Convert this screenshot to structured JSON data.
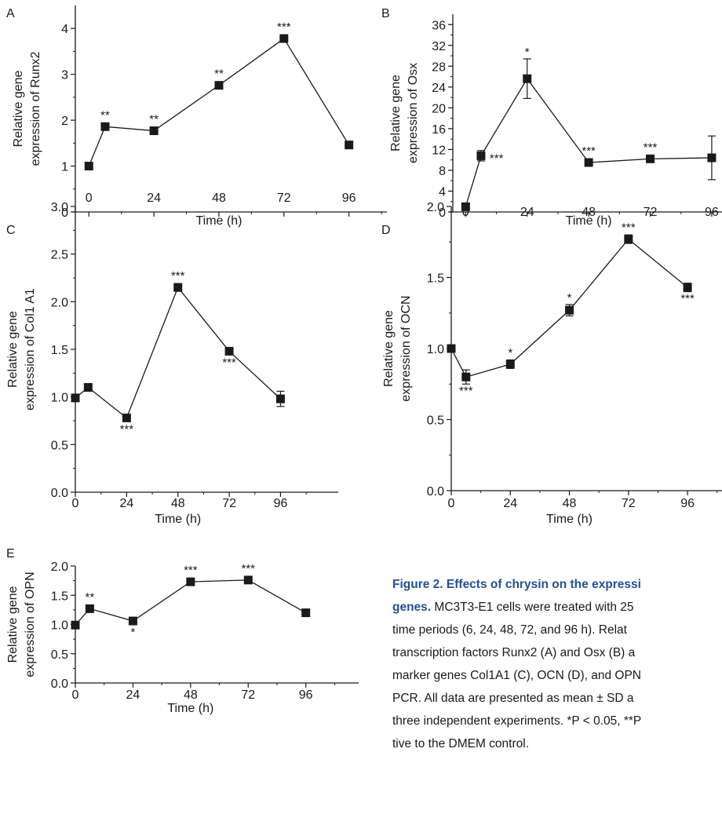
{
  "chart_data": [
    {
      "panel": "A",
      "type": "line",
      "xlabel": "Time (h)",
      "ylabel_lines": [
        "Relative gene",
        "expression of Runx2"
      ],
      "xlim": [
        -5,
        110
      ],
      "ylim": [
        0,
        4.5
      ],
      "xticks": [
        0,
        24,
        48,
        72,
        96
      ],
      "yticks": [
        0,
        1,
        2,
        3,
        4
      ],
      "ytick_labels": [
        "0",
        "1",
        "2",
        "3",
        "4"
      ],
      "points": [
        {
          "x": 0,
          "y": 1.0,
          "err": 0.04,
          "sig": "",
          "sig_pos": "above"
        },
        {
          "x": 6,
          "y": 1.86,
          "err": 0.04,
          "sig": "**",
          "sig_pos": "above"
        },
        {
          "x": 24,
          "y": 1.77,
          "err": 0.04,
          "sig": "**",
          "sig_pos": "above"
        },
        {
          "x": 48,
          "y": 2.76,
          "err": 0.05,
          "sig": "**",
          "sig_pos": "above"
        },
        {
          "x": 72,
          "y": 3.78,
          "err": 0.05,
          "sig": "***",
          "sig_pos": "above"
        },
        {
          "x": 96,
          "y": 1.46,
          "err": 0.04,
          "sig": "",
          "sig_pos": "above"
        }
      ]
    },
    {
      "panel": "B",
      "type": "line",
      "xlabel": "Time (h)",
      "ylabel_lines": [
        "Relative gene",
        "expression of Osx"
      ],
      "xlim": [
        -5,
        100
      ],
      "ylim": [
        0,
        38
      ],
      "xticks": [
        0,
        24,
        48,
        72,
        96
      ],
      "yticks": [
        0,
        4,
        8,
        12,
        16,
        20,
        24,
        28,
        32,
        36
      ],
      "ytick_labels": [
        "0",
        "4",
        "8",
        "12",
        "16",
        "20",
        "24",
        "28",
        "32",
        "36"
      ],
      "points": [
        {
          "x": 0,
          "y": 1.0,
          "err": 0.3,
          "sig": "",
          "sig_pos": "above"
        },
        {
          "x": 6,
          "y": 10.8,
          "err": 1.0,
          "sig": "***",
          "sig_pos": "right"
        },
        {
          "x": 24,
          "y": 25.6,
          "err": 3.8,
          "sig": "*",
          "sig_pos": "above"
        },
        {
          "x": 48,
          "y": 9.5,
          "err": 0.5,
          "sig": "***",
          "sig_pos": "above"
        },
        {
          "x": 72,
          "y": 10.2,
          "err": 0.5,
          "sig": "***",
          "sig_pos": "above"
        },
        {
          "x": 96,
          "y": 10.4,
          "err": 4.2,
          "sig": "",
          "sig_pos": "above"
        }
      ]
    },
    {
      "panel": "C",
      "type": "line",
      "xlabel": "Time (h)",
      "ylabel_lines": [
        "Relative gene",
        "expression of Col1 A1"
      ],
      "xlim": [
        0,
        123
      ],
      "ylim": [
        0,
        3.0
      ],
      "xticks": [
        0,
        24,
        48,
        72,
        96
      ],
      "yticks": [
        0,
        0.5,
        1.0,
        1.5,
        2.0,
        2.5,
        3.0
      ],
      "ytick_labels": [
        "0.0",
        "0.5",
        "1.0",
        "1.5",
        "2.0",
        "2.5",
        "3.0"
      ],
      "points": [
        {
          "x": 0,
          "y": 0.99,
          "err": 0.03,
          "sig": "",
          "sig_pos": "above"
        },
        {
          "x": 6,
          "y": 1.1,
          "err": 0.04,
          "sig": "",
          "sig_pos": "above"
        },
        {
          "x": 24,
          "y": 0.78,
          "err": 0.03,
          "sig": "***",
          "sig_pos": "below"
        },
        {
          "x": 48,
          "y": 2.15,
          "err": 0.04,
          "sig": "***",
          "sig_pos": "above"
        },
        {
          "x": 72,
          "y": 1.48,
          "err": 0.03,
          "sig": "***",
          "sig_pos": "below"
        },
        {
          "x": 96,
          "y": 0.98,
          "err": 0.08,
          "sig": "",
          "sig_pos": "above"
        }
      ]
    },
    {
      "panel": "D",
      "type": "line",
      "xlabel": "Time (h)",
      "ylabel_lines": [
        "Relative gene",
        "expression of OCN"
      ],
      "xlim": [
        0,
        110
      ],
      "ylim": [
        0,
        2.0
      ],
      "xticks": [
        0,
        24,
        48,
        72,
        96
      ],
      "yticks": [
        0,
        0.5,
        1.0,
        1.5,
        2.0
      ],
      "ytick_labels": [
        "0.0",
        "0.5",
        "1.0",
        "1.5",
        "2.0"
      ],
      "points": [
        {
          "x": 0,
          "y": 1.0,
          "err": 0.02,
          "sig": "",
          "sig_pos": "above"
        },
        {
          "x": 6,
          "y": 0.8,
          "err": 0.05,
          "sig": "***",
          "sig_pos": "below"
        },
        {
          "x": 24,
          "y": 0.89,
          "err": 0.03,
          "sig": "*",
          "sig_pos": "above"
        },
        {
          "x": 48,
          "y": 1.27,
          "err": 0.04,
          "sig": "*",
          "sig_pos": "above"
        },
        {
          "x": 72,
          "y": 1.77,
          "err": 0.03,
          "sig": "***",
          "sig_pos": "above"
        },
        {
          "x": 96,
          "y": 1.43,
          "err": 0.03,
          "sig": "***",
          "sig_pos": "below"
        }
      ]
    },
    {
      "panel": "E",
      "type": "line",
      "xlabel": "Time (h)",
      "ylabel_lines": [
        "Relative gene",
        "expression of OPN"
      ],
      "xlim": [
        0,
        118
      ],
      "ylim": [
        0,
        2.0
      ],
      "xticks": [
        0,
        24,
        48,
        72,
        96
      ],
      "yticks": [
        0,
        0.5,
        1.0,
        1.5,
        2.0
      ],
      "ytick_labels": [
        "0.0",
        "0.5",
        "1.0",
        "1.5",
        "2.0"
      ],
      "points": [
        {
          "x": 0,
          "y": 0.99,
          "err": 0.02,
          "sig": "",
          "sig_pos": "above"
        },
        {
          "x": 6,
          "y": 1.27,
          "err": 0.03,
          "sig": "**",
          "sig_pos": "above"
        },
        {
          "x": 24,
          "y": 1.06,
          "err": 0.03,
          "sig": "*",
          "sig_pos": "below"
        },
        {
          "x": 48,
          "y": 1.73,
          "err": 0.02,
          "sig": "***",
          "sig_pos": "above"
        },
        {
          "x": 72,
          "y": 1.76,
          "err": 0.02,
          "sig": "***",
          "sig_pos": "above"
        },
        {
          "x": 96,
          "y": 1.2,
          "err": 0.03,
          "sig": "",
          "sig_pos": "above"
        }
      ]
    }
  ],
  "caption": {
    "lines": [
      {
        "title": "Figure 2. Effects of chrysin on the expressi",
        "text": ""
      },
      {
        "title": "genes.",
        "text": " MC3T3-E1 cells were treated with 25"
      },
      {
        "title": "",
        "text": "time periods (6, 24, 48, 72, and 96 h). Relat"
      },
      {
        "title": "",
        "text": "transcription factors Runx2 (A) and Osx (B) a"
      },
      {
        "title": "",
        "text": "marker genes Col1A1 (C), OCN (D), and OPN"
      },
      {
        "title": "",
        "text": "PCR. All data are presented as mean ± SD a"
      },
      {
        "title": "",
        "text": "three independent experiments. *P < 0.05, **P"
      },
      {
        "title": "",
        "text": "tive to the DMEM control."
      }
    ]
  }
}
